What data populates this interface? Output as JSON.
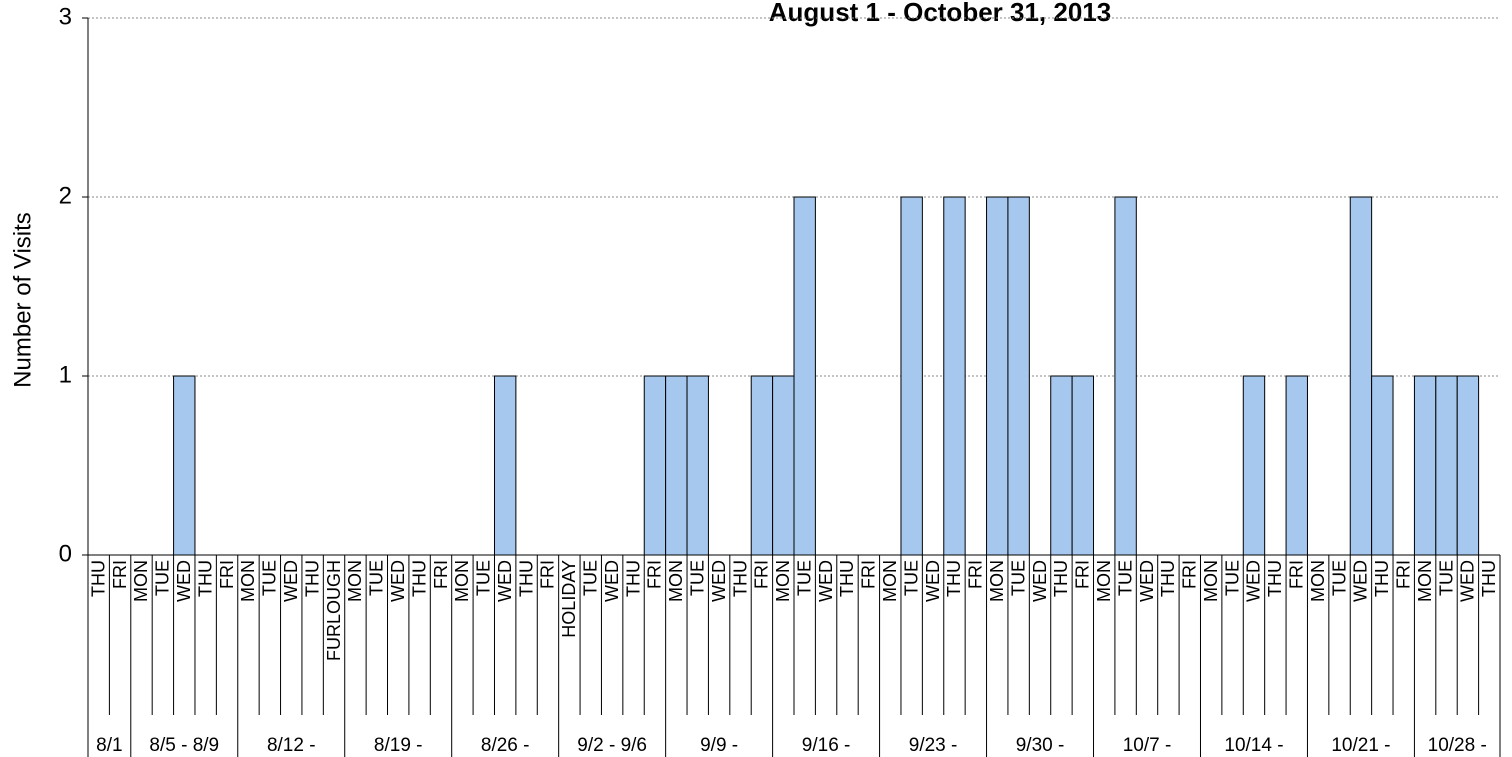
{
  "chart_data": {
    "type": "bar",
    "title": "August 1 - October 31, 2013",
    "y_label": "Number of Visits",
    "color": "#a6c8ee",
    "ylim": [
      0,
      3
    ],
    "yticks": [
      0,
      1,
      2,
      3
    ],
    "grid": true,
    "groups": [
      {
        "label": "8/1",
        "categories": [
          "THU",
          "FRI"
        ],
        "values": [
          0,
          0
        ]
      },
      {
        "label": "8/5 - 8/9",
        "categories": [
          "MON",
          "TUE",
          "WED",
          "THU",
          "FRI"
        ],
        "values": [
          0,
          0,
          1,
          0,
          0
        ]
      },
      {
        "label": "8/12 -",
        "categories": [
          "MON",
          "TUE",
          "WED",
          "THU",
          "FURLOUGH"
        ],
        "values": [
          0,
          0,
          0,
          0,
          0
        ]
      },
      {
        "label": "8/19 -",
        "categories": [
          "MON",
          "TUE",
          "WED",
          "THU",
          "FRI"
        ],
        "values": [
          0,
          0,
          0,
          0,
          0
        ]
      },
      {
        "label": "8/26 -",
        "categories": [
          "MON",
          "TUE",
          "WED",
          "THU",
          "FRI"
        ],
        "values": [
          0,
          0,
          1,
          0,
          0
        ]
      },
      {
        "label": "9/2 - 9/6",
        "categories": [
          "HOLIDAY",
          "TUE",
          "WED",
          "THU",
          "FRI"
        ],
        "values": [
          0,
          0,
          0,
          0,
          1
        ]
      },
      {
        "label": "9/9 -",
        "categories": [
          "MON",
          "TUE",
          "WED",
          "THU",
          "FRI"
        ],
        "values": [
          1,
          1,
          0,
          0,
          1
        ]
      },
      {
        "label": "9/16 -",
        "categories": [
          "MON",
          "TUE",
          "WED",
          "THU",
          "FRI"
        ],
        "values": [
          1,
          2,
          0,
          0,
          0
        ]
      },
      {
        "label": "9/23 -",
        "categories": [
          "MON",
          "TUE",
          "WED",
          "THU",
          "FRI"
        ],
        "values": [
          0,
          2,
          0,
          2,
          0
        ]
      },
      {
        "label": "9/30 -",
        "categories": [
          "MON",
          "TUE",
          "WED",
          "THU",
          "FRI"
        ],
        "values": [
          2,
          2,
          0,
          1,
          1
        ]
      },
      {
        "label": "10/7 -",
        "categories": [
          "MON",
          "TUE",
          "WED",
          "THU",
          "FRI"
        ],
        "values": [
          0,
          2,
          0,
          0,
          0
        ]
      },
      {
        "label": "10/14 -",
        "categories": [
          "MON",
          "TUE",
          "WED",
          "THU",
          "FRI"
        ],
        "values": [
          0,
          0,
          1,
          0,
          1
        ]
      },
      {
        "label": "10/21 -",
        "categories": [
          "MON",
          "TUE",
          "WED",
          "THU",
          "FRI"
        ],
        "values": [
          0,
          0,
          2,
          1,
          0
        ]
      },
      {
        "label": "10/28 -",
        "categories": [
          "MON",
          "TUE",
          "WED",
          "THU"
        ],
        "values": [
          1,
          1,
          1,
          0
        ]
      }
    ]
  }
}
